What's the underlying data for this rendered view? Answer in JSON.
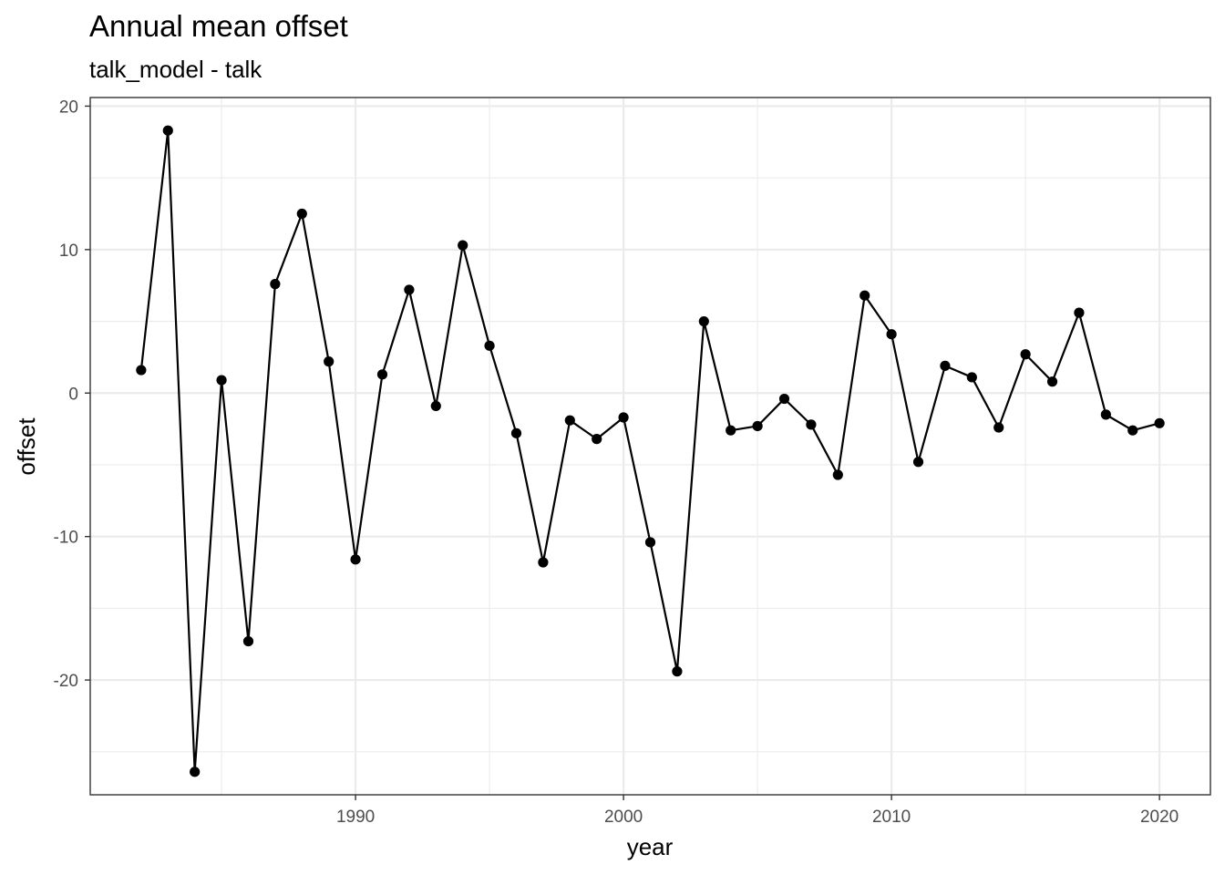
{
  "chart_data": {
    "type": "line",
    "title": "Annual mean offset",
    "subtitle": "talk_model - talk",
    "xlabel": "year",
    "ylabel": "offset",
    "xlim": [
      1980.1,
      2021.9
    ],
    "ylim": [
      -28.0,
      20.6
    ],
    "x_ticks": [
      1990,
      2000,
      2010,
      2020
    ],
    "x_minor_ticks": [
      1985,
      1995,
      2005,
      2015
    ],
    "y_ticks": [
      -20,
      -10,
      0,
      10,
      20
    ],
    "y_minor_ticks": [
      -25,
      -15,
      -5,
      5,
      15
    ],
    "grid": true,
    "legend": "none",
    "series": [
      {
        "x": [
          1982,
          1983,
          1984,
          1985,
          1986,
          1987,
          1988,
          1989,
          1990,
          1991,
          1992,
          1993,
          1994,
          1995,
          1996,
          1997,
          1998,
          1999,
          2000,
          2001,
          2002,
          2003,
          2004,
          2005,
          2006,
          2007,
          2008,
          2009,
          2010,
          2011,
          2012,
          2013,
          2014,
          2015,
          2016,
          2017,
          2018,
          2019,
          2020
        ],
        "y": [
          1.6,
          18.3,
          -26.4,
          0.9,
          -17.3,
          7.6,
          12.5,
          2.2,
          -11.6,
          1.3,
          7.2,
          -0.9,
          10.3,
          3.3,
          -2.8,
          -11.8,
          -1.9,
          -3.2,
          -1.7,
          -10.4,
          -19.4,
          5.0,
          -2.6,
          -2.3,
          -0.4,
          -2.2,
          -5.7,
          6.8,
          4.1,
          -4.8,
          1.9,
          1.1,
          -2.4,
          2.7,
          0.8,
          5.6,
          -1.5,
          -2.6,
          -2.1
        ]
      }
    ]
  }
}
